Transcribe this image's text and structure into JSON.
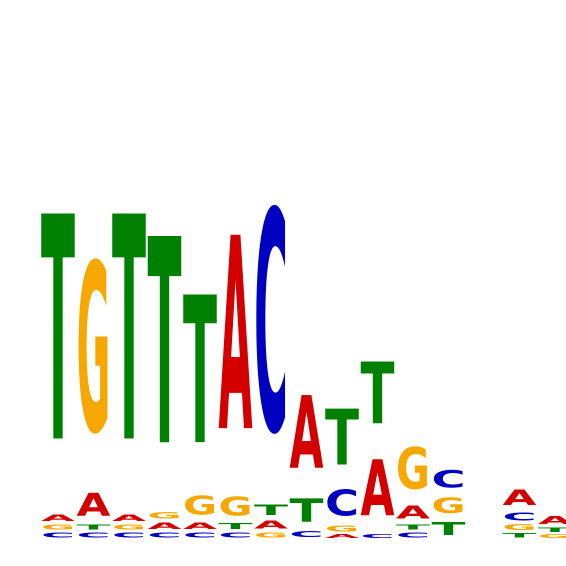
{
  "chart_data": {
    "type": "sequence-logo",
    "alphabet": [
      "A",
      "C",
      "G",
      "T"
    ],
    "colors": {
      "A": "#d40000",
      "C": "#0000c0",
      "G": "#f7a800",
      "T": "#008000"
    },
    "max_bits": 2,
    "positions": [
      [
        [
          "C",
          0.035
        ],
        [
          "G",
          0.035
        ],
        [
          "A",
          0.045
        ],
        [
          "T",
          1.57
        ]
      ],
      [
        [
          "C",
          0.035
        ],
        [
          "T",
          0.035
        ],
        [
          "A",
          0.16
        ],
        [
          "G",
          1.18
        ]
      ],
      [
        [
          "C",
          0.035
        ],
        [
          "G",
          0.035
        ],
        [
          "A",
          0.045
        ],
        [
          "T",
          1.57
        ]
      ],
      [
        [
          "C",
          0.035
        ],
        [
          "A",
          0.045
        ],
        [
          "G",
          0.045
        ],
        [
          "T",
          1.44
        ]
      ],
      [
        [
          "C",
          0.035
        ],
        [
          "A",
          0.045
        ],
        [
          "G",
          0.13
        ],
        [
          "T",
          1.03
        ]
      ],
      [
        [
          "C",
          0.035
        ],
        [
          "T",
          0.04
        ],
        [
          "G",
          0.13
        ],
        [
          "A",
          1.35
        ]
      ],
      [
        [
          "G",
          0.035
        ],
        [
          "A",
          0.055
        ],
        [
          "T",
          0.07
        ],
        [
          "C",
          1.54
        ]
      ],
      [
        [
          "C",
          0.04
        ],
        [
          "T",
          0.165
        ],
        [
          "A",
          0.51
        ]
      ],
      [
        [
          "A",
          0.025
        ],
        [
          "G",
          0.04
        ],
        [
          "C",
          0.18
        ],
        [
          "T",
          0.39
        ]
      ],
      [
        [
          "C",
          0.025
        ],
        [
          "A",
          0.39
        ],
        [
          "T",
          0.43
        ]
      ],
      [
        [
          "C",
          0.035
        ],
        [
          "T",
          0.035
        ],
        [
          "A",
          0.09
        ],
        [
          "G",
          0.29
        ]
      ],
      [
        [
          "T",
          0.09
        ],
        [
          "G",
          0.11
        ],
        [
          "C",
          0.12
        ]
      ],
      [],
      [
        [
          "T",
          0.03
        ],
        [
          "G",
          0.04
        ],
        [
          "C",
          0.055
        ],
        [
          "A",
          0.11
        ]
      ],
      [
        [
          "G",
          0.025
        ],
        [
          "T",
          0.03
        ],
        [
          "A",
          0.055
        ]
      ]
    ]
  }
}
